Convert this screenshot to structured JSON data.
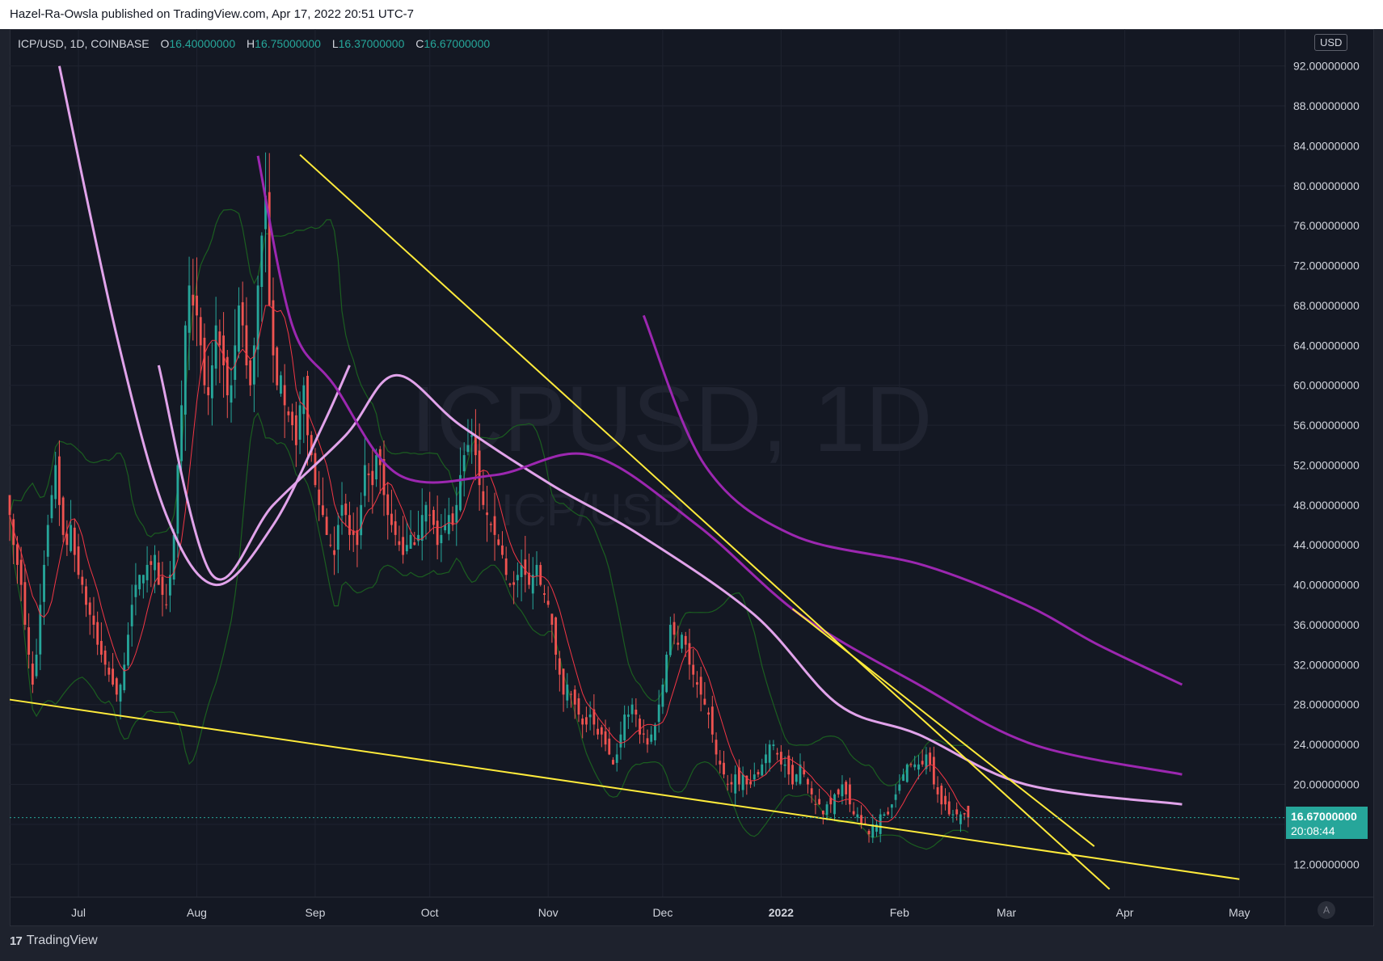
{
  "header": {
    "publish_line": "Hazel-Ra-Owsla published on TradingView.com, Apr 17, 2022 20:51 UTC-7"
  },
  "legend": {
    "symbol": "ICP/USD, 1D, COINBASE",
    "open_label": "O",
    "open": "16.40000000",
    "high_label": "H",
    "high": "16.75000000",
    "low_label": "L",
    "low": "16.37000000",
    "close_label": "C",
    "close": "16.67000000"
  },
  "currency_badge": "USD",
  "watermark": {
    "line1": "ICPUSD, 1D",
    "line2": "ICP/USD"
  },
  "price_tag": {
    "price": "16.67000000",
    "countdown": "20:08:44"
  },
  "autoscale_label": "A",
  "brand": {
    "icon": "17",
    "name": "TradingView"
  },
  "colors": {
    "up": "#26a69a",
    "down": "#ef5350",
    "trendline": "#ffeb3b",
    "ma_light": "#e1a3ea",
    "ma_dark": "#9c27b0",
    "ma_red": "#f23645",
    "bollinger": "#1b5e20"
  },
  "chart_data": {
    "type": "candlestick",
    "symbol": "ICP/USD",
    "interval": "1D",
    "exchange": "COINBASE",
    "y_axis": {
      "scale": "linear",
      "ticks": [
        12,
        16,
        20,
        24,
        28,
        32,
        36,
        40,
        44,
        48,
        52,
        56,
        60,
        64,
        68,
        72,
        76,
        80,
        84,
        88,
        92
      ],
      "tick_labels": [
        "12.00000000",
        "16.00000000",
        "20.00000000",
        "24.00000000",
        "28.00000000",
        "32.00000000",
        "36.00000000",
        "40.00000000",
        "44.00000000",
        "48.00000000",
        "52.00000000",
        "56.00000000",
        "60.00000000",
        "64.00000000",
        "68.00000000",
        "72.00000000",
        "76.00000000",
        "80.00000000",
        "84.00000000",
        "88.00000000",
        "92.00000000"
      ],
      "range": [
        8.7,
        95.7
      ]
    },
    "x_axis": {
      "range": [
        "2021-06-13",
        "2022-05-13"
      ],
      "ticks": [
        {
          "date": "2021-07-01",
          "label": "Jul",
          "bold": false
        },
        {
          "date": "2021-08-01",
          "label": "Aug",
          "bold": false
        },
        {
          "date": "2021-09-01",
          "label": "Sep",
          "bold": false
        },
        {
          "date": "2021-10-01",
          "label": "Oct",
          "bold": false
        },
        {
          "date": "2021-11-01",
          "label": "Nov",
          "bold": false
        },
        {
          "date": "2021-12-01",
          "label": "Dec",
          "bold": false
        },
        {
          "date": "2022-01-01",
          "label": "2022",
          "bold": true
        },
        {
          "date": "2022-02-01",
          "label": "Feb",
          "bold": false
        },
        {
          "date": "2022-03-01",
          "label": "Mar",
          "bold": false
        },
        {
          "date": "2022-04-01",
          "label": "Apr",
          "bold": false
        },
        {
          "date": "2022-05-01",
          "label": "May",
          "bold": false
        }
      ]
    },
    "candles_start_date": "2021-06-13",
    "closes": [
      47,
      44,
      42,
      40,
      36,
      33,
      30,
      33,
      38,
      42,
      46,
      49,
      52,
      48,
      45,
      44,
      46,
      43,
      41,
      40,
      38,
      37,
      36,
      34,
      33,
      32,
      31,
      30,
      29,
      30,
      32,
      35,
      38,
      40,
      41,
      41,
      42,
      42,
      43,
      40,
      39,
      38,
      41,
      45,
      52,
      58,
      66,
      70,
      68,
      67,
      64,
      60,
      59,
      62,
      66,
      64,
      62,
      59,
      60,
      64,
      68,
      66,
      62,
      60,
      64,
      70,
      75,
      79,
      68,
      63,
      60,
      61,
      58,
      57,
      56,
      54,
      58,
      60,
      55,
      53,
      50,
      48,
      47,
      45,
      44,
      43,
      46,
      48,
      47,
      45,
      45,
      44,
      48,
      52,
      51,
      50,
      53,
      52,
      49,
      47,
      46,
      45,
      44,
      43,
      44,
      45,
      44,
      45,
      47,
      48,
      47,
      46,
      44,
      45,
      46,
      47,
      46,
      48,
      51,
      53,
      54,
      55,
      53,
      50,
      48,
      47,
      46,
      45,
      44,
      43,
      41,
      40,
      40,
      41,
      42,
      41,
      40,
      41,
      42,
      40,
      39,
      38,
      36,
      33,
      31,
      29,
      30,
      29,
      28,
      27,
      26,
      26,
      27,
      26,
      25,
      25,
      24,
      23,
      22,
      23,
      25,
      27,
      27,
      28,
      27,
      25,
      25,
      24,
      25,
      26,
      28,
      30,
      33,
      36,
      35,
      34,
      35,
      34,
      32,
      31,
      30,
      29,
      28,
      27,
      25,
      23,
      22,
      21,
      20,
      20,
      21,
      20,
      21,
      20,
      20,
      21,
      21,
      22,
      23,
      24,
      24,
      23,
      22,
      22,
      21,
      20,
      21,
      22,
      21,
      20,
      19,
      18,
      18,
      17,
      18,
      18,
      19,
      19,
      20,
      19,
      18,
      17,
      17,
      16,
      16,
      15,
      16,
      16,
      17,
      17,
      17,
      18,
      19,
      20,
      21,
      22,
      22,
      22,
      22,
      22,
      23,
      22,
      20,
      19,
      18,
      18,
      17,
      17,
      17,
      17,
      17,
      16.67
    ],
    "trendlines": [
      {
        "name": "upper-trendline-1",
        "from": {
          "date": "2021-08-28",
          "price": 83.1
        },
        "to": {
          "date": "2022-03-28",
          "price": 9.5
        }
      },
      {
        "name": "upper-trendline-2",
        "from": {
          "date": "2022-01-04",
          "price": 37.6
        },
        "to": {
          "date": "2022-03-24",
          "price": 13.8
        }
      },
      {
        "name": "lower-trendline",
        "from": {
          "date": "2021-06-13",
          "price": 28.5
        },
        "to": {
          "date": "2022-05-01",
          "price": 10.5
        }
      }
    ],
    "ma_light_slow": [
      {
        "date": "2021-07-22",
        "price": 62
      },
      {
        "date": "2021-08-05",
        "price": 41
      },
      {
        "date": "2021-08-21",
        "price": 48
      },
      {
        "date": "2021-09-09",
        "price": 55
      },
      {
        "date": "2021-09-22",
        "price": 61
      },
      {
        "date": "2021-10-09",
        "price": 56
      },
      {
        "date": "2021-11-02",
        "price": 50
      },
      {
        "date": "2021-11-25",
        "price": 45
      },
      {
        "date": "2021-12-25",
        "price": 37
      },
      {
        "date": "2022-01-16",
        "price": 28
      },
      {
        "date": "2022-02-06",
        "price": 25
      },
      {
        "date": "2022-03-06",
        "price": 20
      },
      {
        "date": "2022-04-16",
        "price": 18
      }
    ],
    "ma_light_fast": [
      {
        "date": "2021-06-26",
        "price": 92
      },
      {
        "date": "2021-07-11",
        "price": 65
      },
      {
        "date": "2021-07-24",
        "price": 47
      },
      {
        "date": "2021-08-06",
        "price": 40
      },
      {
        "date": "2021-08-21",
        "price": 46
      },
      {
        "date": "2021-09-03",
        "price": 56
      },
      {
        "date": "2021-09-10",
        "price": 62
      }
    ],
    "ma_dark_a": [
      {
        "date": "2021-08-17",
        "price": 83
      },
      {
        "date": "2021-08-26",
        "price": 66
      },
      {
        "date": "2021-09-06",
        "price": 60
      },
      {
        "date": "2021-09-23",
        "price": 51
      },
      {
        "date": "2021-10-18",
        "price": 51
      },
      {
        "date": "2021-11-12",
        "price": 53
      },
      {
        "date": "2021-12-10",
        "price": 46
      },
      {
        "date": "2022-01-06",
        "price": 37
      },
      {
        "date": "2022-02-06",
        "price": 30
      },
      {
        "date": "2022-03-08",
        "price": 24
      },
      {
        "date": "2022-04-16",
        "price": 21
      }
    ],
    "ma_dark_b": [
      {
        "date": "2021-11-26",
        "price": 67
      },
      {
        "date": "2021-12-12",
        "price": 52
      },
      {
        "date": "2022-01-04",
        "price": 45
      },
      {
        "date": "2022-02-07",
        "price": 42
      },
      {
        "date": "2022-03-06",
        "price": 38
      },
      {
        "date": "2022-03-25",
        "price": 34
      },
      {
        "date": "2022-04-16",
        "price": 30
      }
    ]
  }
}
